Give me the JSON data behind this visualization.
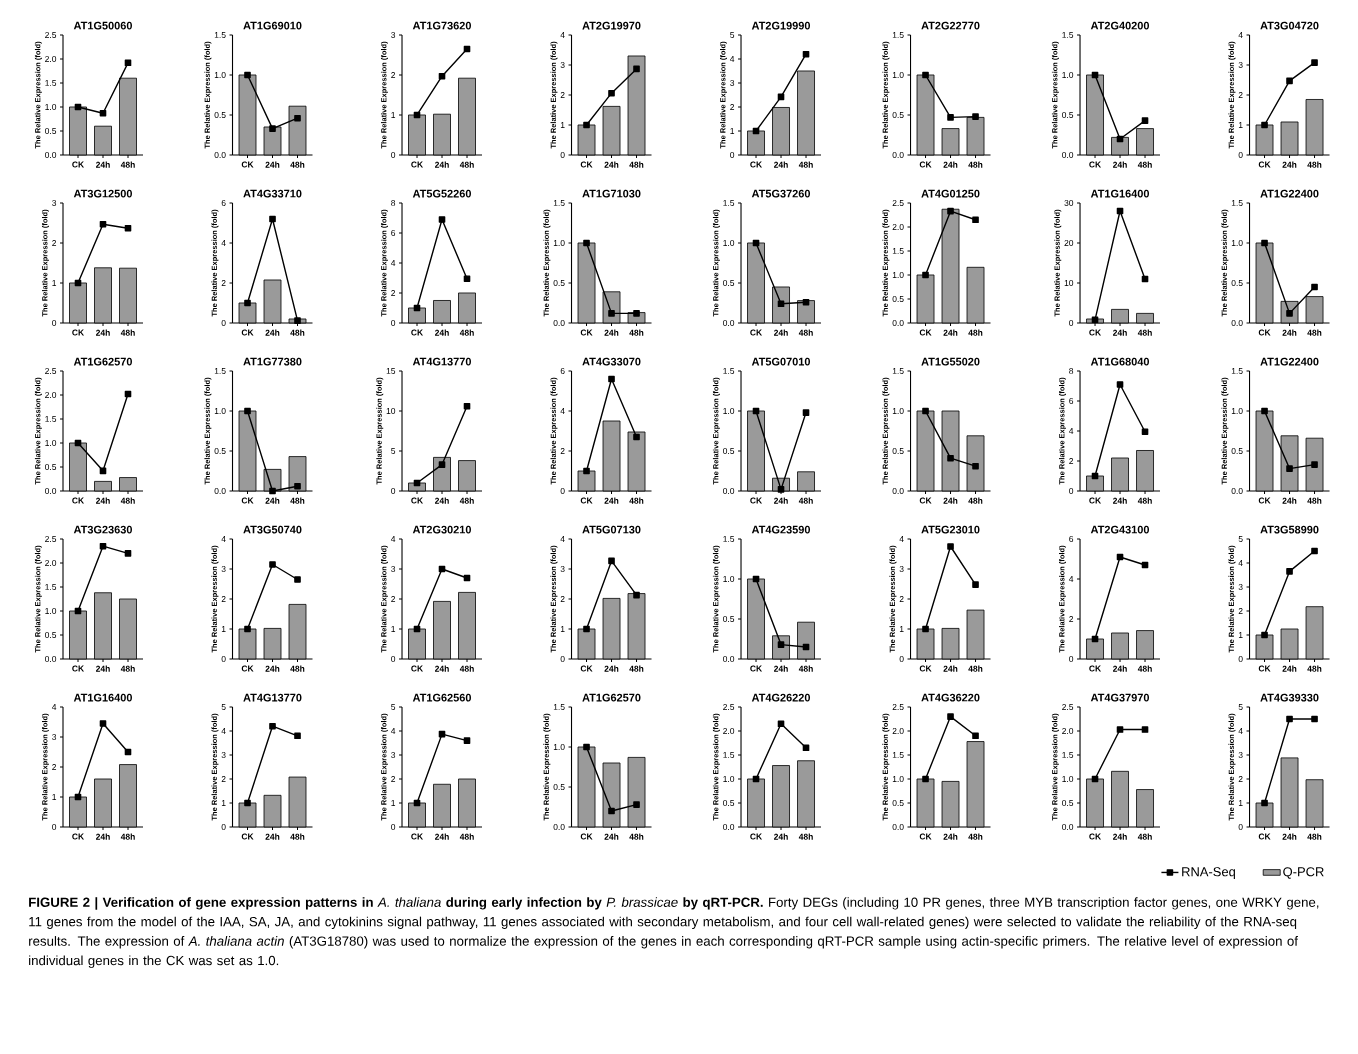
{
  "chart_data": [
    {
      "type": "bar",
      "title": "AT1G50060",
      "ylabel": "The Relative Expression (fold)",
      "categories": [
        "CK",
        "24h",
        "48h"
      ],
      "ylim": [
        0,
        2.5
      ],
      "yticks": [
        {
          "value": 0,
          "label": "0.0"
        },
        {
          "value": 0.5,
          "label": "0.5"
        },
        {
          "value": 1,
          "label": "1.0"
        },
        {
          "value": 1.5,
          "label": "1.5"
        },
        {
          "value": 2,
          "label": "2.0"
        },
        {
          "value": 2.5,
          "label": "2.5"
        }
      ],
      "series": [
        {
          "type": "bar",
          "color": "#9a9a9a",
          "values": [
            1.0,
            0.6,
            1.6
          ]
        },
        {
          "type": "line",
          "color": "#000000",
          "marker": "square",
          "values": [
            1.0,
            0.87,
            1.92
          ]
        }
      ]
    },
    {
      "type": "bar",
      "title": "AT1G69010",
      "ylabel": "The Relative Expression (fold)",
      "categories": [
        "CK",
        "24h",
        "48h"
      ],
      "ylim": [
        0,
        1.5
      ],
      "yticks": [
        {
          "value": 0,
          "label": "0.0"
        },
        {
          "value": 0.5,
          "label": "0.5"
        },
        {
          "value": 1,
          "label": "1.0"
        },
        {
          "value": 1.5,
          "label": "1.5"
        }
      ],
      "series": [
        {
          "type": "bar",
          "color": "#9a9a9a",
          "values": [
            1.0,
            0.35,
            0.61
          ]
        },
        {
          "type": "line",
          "color": "#000000",
          "marker": "square",
          "values": [
            1.0,
            0.33,
            0.46
          ]
        }
      ]
    },
    {
      "type": "bar",
      "title": "AT1G73620",
      "ylabel": "The Relative Expression (fold)",
      "categories": [
        "CK",
        "24h",
        "48h"
      ],
      "ylim": [
        0,
        3
      ],
      "yticks": [
        0,
        1,
        2,
        3
      ],
      "series": [
        {
          "type": "bar",
          "color": "#9a9a9a",
          "values": [
            1.0,
            1.02,
            1.92
          ]
        },
        {
          "type": "line",
          "color": "#000000",
          "marker": "square",
          "values": [
            1.0,
            1.97,
            2.65
          ]
        }
      ]
    },
    {
      "type": "bar",
      "title": "AT2G19970",
      "ylabel": "The Relative Expression (fold)",
      "categories": [
        "CK",
        "24h",
        "48h"
      ],
      "ylim": [
        0,
        4
      ],
      "yticks": [
        0,
        1,
        2,
        3,
        4
      ],
      "series": [
        {
          "type": "bar",
          "color": "#9a9a9a",
          "values": [
            1.0,
            1.62,
            3.3
          ]
        },
        {
          "type": "line",
          "color": "#000000",
          "marker": "square",
          "values": [
            1.0,
            2.06,
            2.87
          ]
        }
      ]
    },
    {
      "type": "bar",
      "title": "AT2G19990",
      "ylabel": "The Relative Expression (fold)",
      "categories": [
        "CK",
        "24h",
        "48h"
      ],
      "ylim": [
        0,
        5
      ],
      "yticks": [
        0,
        1,
        2,
        3,
        4,
        5
      ],
      "series": [
        {
          "type": "bar",
          "color": "#9a9a9a",
          "values": [
            1.0,
            1.98,
            3.5
          ]
        },
        {
          "type": "line",
          "color": "#000000",
          "marker": "square",
          "values": [
            1.0,
            2.42,
            4.2
          ]
        }
      ]
    },
    {
      "type": "bar",
      "title": "AT2G22770",
      "ylabel": "The Relative Expression (fold)",
      "categories": [
        "CK",
        "24h",
        "48h"
      ],
      "ylim": [
        0,
        1.5
      ],
      "yticks": [
        {
          "value": 0,
          "label": "0.0"
        },
        {
          "value": 0.5,
          "label": "0.5"
        },
        {
          "value": 1,
          "label": "1.0"
        },
        {
          "value": 1.5,
          "label": "1.5"
        }
      ],
      "series": [
        {
          "type": "bar",
          "color": "#9a9a9a",
          "values": [
            1.0,
            0.33,
            0.47
          ]
        },
        {
          "type": "line",
          "color": "#000000",
          "marker": "square",
          "values": [
            1.0,
            0.47,
            0.48
          ]
        }
      ]
    },
    {
      "type": "bar",
      "title": "AT2G40200",
      "ylabel": "The Relative Expression (fold)",
      "categories": [
        "CK",
        "24h",
        "48h"
      ],
      "ylim": [
        0,
        1.5
      ],
      "yticks": [
        {
          "value": 0,
          "label": "0.0"
        },
        {
          "value": 0.5,
          "label": "0.5"
        },
        {
          "value": 1,
          "label": "1.0"
        },
        {
          "value": 1.5,
          "label": "1.5"
        }
      ],
      "series": [
        {
          "type": "bar",
          "color": "#9a9a9a",
          "values": [
            1.0,
            0.22,
            0.33
          ]
        },
        {
          "type": "line",
          "color": "#000000",
          "marker": "square",
          "values": [
            1.0,
            0.2,
            0.43
          ]
        }
      ]
    },
    {
      "type": "bar",
      "title": "AT3G04720",
      "ylabel": "The Relative Expression (fold)",
      "categories": [
        "CK",
        "24h",
        "48h"
      ],
      "ylim": [
        0,
        4
      ],
      "yticks": [
        0,
        1,
        2,
        3,
        4
      ],
      "series": [
        {
          "type": "bar",
          "color": "#9a9a9a",
          "values": [
            1.0,
            1.1,
            1.85
          ]
        },
        {
          "type": "line",
          "color": "#000000",
          "marker": "square",
          "values": [
            1.0,
            2.47,
            3.08
          ]
        }
      ]
    },
    {
      "type": "bar",
      "title": "AT3G12500",
      "ylabel": "The Relative Expression (fold)",
      "categories": [
        "CK",
        "24h",
        "48h"
      ],
      "ylim": [
        0,
        3
      ],
      "yticks": [
        0,
        1,
        2,
        3
      ],
      "series": [
        {
          "type": "bar",
          "color": "#9a9a9a",
          "values": [
            1.0,
            1.38,
            1.37
          ]
        },
        {
          "type": "line",
          "color": "#000000",
          "marker": "square",
          "values": [
            1.0,
            2.47,
            2.37
          ]
        }
      ]
    },
    {
      "type": "bar",
      "title": "AT4G33710",
      "ylabel": "The Relative Expression (fold)",
      "categories": [
        "CK",
        "24h",
        "48h"
      ],
      "ylim": [
        0,
        6
      ],
      "yticks": [
        0,
        2,
        4,
        6
      ],
      "series": [
        {
          "type": "bar",
          "color": "#9a9a9a",
          "values": [
            1.0,
            2.15,
            0.2
          ]
        },
        {
          "type": "line",
          "color": "#000000",
          "marker": "square",
          "values": [
            1.0,
            5.2,
            0.12
          ]
        }
      ]
    },
    {
      "type": "bar",
      "title": "AT5G52260",
      "ylabel": "The Relative Expression (fold)",
      "categories": [
        "CK",
        "24h",
        "48h"
      ],
      "ylim": [
        0,
        8
      ],
      "yticks": [
        0,
        2,
        4,
        6,
        8
      ],
      "series": [
        {
          "type": "bar",
          "color": "#9a9a9a",
          "values": [
            1.0,
            1.5,
            2.0
          ]
        },
        {
          "type": "line",
          "color": "#000000",
          "marker": "square",
          "values": [
            1.0,
            6.9,
            2.95
          ]
        }
      ]
    },
    {
      "type": "bar",
      "title": "AT1G71030",
      "ylabel": "The Relative Expression (fold)",
      "categories": [
        "CK",
        "24h",
        "48h"
      ],
      "ylim": [
        0,
        1.5
      ],
      "yticks": [
        {
          "value": 0,
          "label": "0.0"
        },
        {
          "value": 0.5,
          "label": "0.5"
        },
        {
          "value": 1,
          "label": "1.0"
        },
        {
          "value": 1.5,
          "label": "1.5"
        }
      ],
      "series": [
        {
          "type": "bar",
          "color": "#9a9a9a",
          "values": [
            1.0,
            0.39,
            0.13
          ]
        },
        {
          "type": "line",
          "color": "#000000",
          "marker": "square",
          "values": [
            1.0,
            0.12,
            0.12
          ]
        }
      ]
    },
    {
      "type": "bar",
      "title": "AT5G37260",
      "ylabel": "The Relative Expression (fold)",
      "categories": [
        "CK",
        "24h",
        "48h"
      ],
      "ylim": [
        0,
        1.5
      ],
      "yticks": [
        {
          "value": 0,
          "label": "0.0"
        },
        {
          "value": 0.5,
          "label": "0.5"
        },
        {
          "value": 1,
          "label": "1.0"
        },
        {
          "value": 1.5,
          "label": "1.5"
        }
      ],
      "series": [
        {
          "type": "bar",
          "color": "#9a9a9a",
          "values": [
            1.0,
            0.45,
            0.28
          ]
        },
        {
          "type": "line",
          "color": "#000000",
          "marker": "square",
          "values": [
            1.0,
            0.24,
            0.26
          ]
        }
      ]
    },
    {
      "type": "bar",
      "title": "AT4G01250",
      "ylabel": "The Relative Expression (fold)",
      "categories": [
        "CK",
        "24h",
        "48h"
      ],
      "ylim": [
        0,
        2.5
      ],
      "yticks": [
        {
          "value": 0,
          "label": "0.0"
        },
        {
          "value": 0.5,
          "label": "0.5"
        },
        {
          "value": 1,
          "label": "1.0"
        },
        {
          "value": 1.5,
          "label": "1.5"
        },
        {
          "value": 2,
          "label": "2.0"
        },
        {
          "value": 2.5,
          "label": "2.5"
        }
      ],
      "series": [
        {
          "type": "bar",
          "color": "#9a9a9a",
          "values": [
            1.0,
            2.37,
            1.16
          ]
        },
        {
          "type": "line",
          "color": "#000000",
          "marker": "square",
          "values": [
            1.0,
            2.33,
            2.15
          ]
        }
      ]
    },
    {
      "type": "bar",
      "title": "AT1G16400",
      "ylabel": "The Relative Expression (fold)",
      "categories": [
        "CK",
        "24h",
        "48h"
      ],
      "ylim": [
        0,
        30
      ],
      "yticks": [
        0,
        10,
        20,
        30
      ],
      "series": [
        {
          "type": "bar",
          "color": "#9a9a9a",
          "values": [
            1.0,
            3.4,
            2.4
          ]
        },
        {
          "type": "line",
          "color": "#000000",
          "marker": "square",
          "values": [
            0.8,
            28,
            11
          ]
        }
      ]
    },
    {
      "type": "bar",
      "title": "AT1G22400",
      "ylabel": "The Relative Expression (fold)",
      "categories": [
        "CK",
        "24h",
        "48h"
      ],
      "ylim": [
        0,
        1.5
      ],
      "yticks": [
        {
          "value": 0,
          "label": "0.0"
        },
        {
          "value": 0.5,
          "label": "0.5"
        },
        {
          "value": 1,
          "label": "1.0"
        },
        {
          "value": 1.5,
          "label": "1.5"
        }
      ],
      "series": [
        {
          "type": "bar",
          "color": "#9a9a9a",
          "values": [
            1.0,
            0.27,
            0.33
          ]
        },
        {
          "type": "line",
          "color": "#000000",
          "marker": "square",
          "values": [
            1.0,
            0.12,
            0.45
          ]
        }
      ]
    },
    {
      "type": "bar",
      "title": "AT1G62570",
      "ylabel": "The Relative Expression (fold)",
      "categories": [
        "CK",
        "24h",
        "48h"
      ],
      "ylim": [
        0,
        2.5
      ],
      "yticks": [
        {
          "value": 0,
          "label": "0.0"
        },
        {
          "value": 0.5,
          "label": "0.5"
        },
        {
          "value": 1,
          "label": "1.0"
        },
        {
          "value": 1.5,
          "label": "1.5"
        },
        {
          "value": 2,
          "label": "2.0"
        },
        {
          "value": 2.5,
          "label": "2.5"
        }
      ],
      "series": [
        {
          "type": "bar",
          "color": "#9a9a9a",
          "values": [
            1.0,
            0.2,
            0.28
          ]
        },
        {
          "type": "line",
          "color": "#000000",
          "marker": "square",
          "values": [
            1.0,
            0.42,
            2.02
          ]
        }
      ]
    },
    {
      "type": "bar",
      "title": "AT1G77380",
      "ylabel": "The Relative Expression (fold)",
      "categories": [
        "CK",
        "24h",
        "48h"
      ],
      "ylim": [
        0,
        1.5
      ],
      "yticks": [
        {
          "value": 0,
          "label": "0.0"
        },
        {
          "value": 0.5,
          "label": "0.5"
        },
        {
          "value": 1,
          "label": "1.0"
        },
        {
          "value": 1.5,
          "label": "1.5"
        }
      ],
      "series": [
        {
          "type": "bar",
          "color": "#9a9a9a",
          "values": [
            1.0,
            0.27,
            0.43
          ]
        },
        {
          "type": "line",
          "color": "#000000",
          "marker": "square",
          "values": [
            1.0,
            0.0,
            0.06
          ]
        }
      ]
    },
    {
      "type": "bar",
      "title": "AT4G13770",
      "ylabel": "The Relative Expression (fold)",
      "categories": [
        "CK",
        "24h",
        "48h"
      ],
      "ylim": [
        0,
        15
      ],
      "yticks": [
        0,
        5,
        10,
        15
      ],
      "series": [
        {
          "type": "bar",
          "color": "#9a9a9a",
          "values": [
            1.0,
            4.2,
            3.8
          ]
        },
        {
          "type": "line",
          "color": "#000000",
          "marker": "square",
          "values": [
            1.0,
            3.3,
            10.6
          ]
        }
      ]
    },
    {
      "type": "bar",
      "title": "AT4G33070",
      "ylabel": "The Relative Expression (fold)",
      "categories": [
        "CK",
        "24h",
        "48h"
      ],
      "ylim": [
        0,
        6
      ],
      "yticks": [
        0,
        2,
        4,
        6
      ],
      "series": [
        {
          "type": "bar",
          "color": "#9a9a9a",
          "values": [
            1.0,
            3.5,
            2.95
          ]
        },
        {
          "type": "line",
          "color": "#000000",
          "marker": "square",
          "values": [
            1.0,
            5.6,
            2.7
          ]
        }
      ]
    },
    {
      "type": "bar",
      "title": "AT5G07010",
      "ylabel": "The Relative Expression (fold)",
      "categories": [
        "CK",
        "24h",
        "48h"
      ],
      "ylim": [
        0,
        1.5
      ],
      "yticks": [
        {
          "value": 0,
          "label": "0.0"
        },
        {
          "value": 0.5,
          "label": "0.5"
        },
        {
          "value": 1,
          "label": "1.0"
        },
        {
          "value": 1.5,
          "label": "1.5"
        }
      ],
      "series": [
        {
          "type": "bar",
          "color": "#9a9a9a",
          "values": [
            1.0,
            0.16,
            0.24
          ]
        },
        {
          "type": "line",
          "color": "#000000",
          "marker": "square",
          "values": [
            1.0,
            0.02,
            0.98
          ]
        }
      ]
    },
    {
      "type": "bar",
      "title": "AT1G55020",
      "ylabel": "The Relative Expression (fold)",
      "categories": [
        "CK",
        "24h",
        "48h"
      ],
      "ylim": [
        0,
        1.5
      ],
      "yticks": [
        {
          "value": 0,
          "label": "0.0"
        },
        {
          "value": 0.5,
          "label": "0.5"
        },
        {
          "value": 1,
          "label": "1.0"
        },
        {
          "value": 1.5,
          "label": "1.5"
        }
      ],
      "series": [
        {
          "type": "bar",
          "color": "#9a9a9a",
          "values": [
            1.0,
            1.0,
            0.69
          ]
        },
        {
          "type": "line",
          "color": "#000000",
          "marker": "square",
          "values": [
            1.0,
            0.41,
            0.31
          ]
        }
      ]
    },
    {
      "type": "bar",
      "title": "AT1G68040",
      "ylabel": "The Relative Expression (fold)",
      "categories": [
        "CK",
        "24h",
        "48h"
      ],
      "ylim": [
        0,
        8
      ],
      "yticks": [
        0,
        2,
        4,
        6,
        8
      ],
      "series": [
        {
          "type": "bar",
          "color": "#9a9a9a",
          "values": [
            1.0,
            2.2,
            2.7
          ]
        },
        {
          "type": "line",
          "color": "#000000",
          "marker": "square",
          "values": [
            1.0,
            7.1,
            3.95
          ]
        }
      ]
    },
    {
      "type": "bar",
      "title": "AT1G22400",
      "ylabel": "The Relative Expression (fold)",
      "categories": [
        "CK",
        "24h",
        "48h"
      ],
      "ylim": [
        0,
        1.5
      ],
      "yticks": [
        {
          "value": 0,
          "label": "0.0"
        },
        {
          "value": 0.5,
          "label": "0.5"
        },
        {
          "value": 1,
          "label": "1.0"
        },
        {
          "value": 1.5,
          "label": "1.5"
        }
      ],
      "series": [
        {
          "type": "bar",
          "color": "#9a9a9a",
          "values": [
            1.0,
            0.69,
            0.66
          ]
        },
        {
          "type": "line",
          "color": "#000000",
          "marker": "square",
          "values": [
            1.0,
            0.28,
            0.33
          ]
        }
      ]
    },
    {
      "type": "bar",
      "title": "AT3G23630",
      "ylabel": "The Relative Expression (fold)",
      "categories": [
        "CK",
        "24h",
        "48h"
      ],
      "ylim": [
        0,
        2.5
      ],
      "yticks": [
        {
          "value": 0,
          "label": "0.0"
        },
        {
          "value": 0.5,
          "label": "0.5"
        },
        {
          "value": 1,
          "label": "1.0"
        },
        {
          "value": 1.5,
          "label": "1.5"
        },
        {
          "value": 2,
          "label": "2.0"
        },
        {
          "value": 2.5,
          "label": "2.5"
        }
      ],
      "series": [
        {
          "type": "bar",
          "color": "#9a9a9a",
          "values": [
            1.0,
            1.38,
            1.25
          ]
        },
        {
          "type": "line",
          "color": "#000000",
          "marker": "square",
          "values": [
            1.0,
            2.35,
            2.2
          ]
        }
      ]
    },
    {
      "type": "bar",
      "title": "AT3G50740",
      "ylabel": "The Relative Expression (fold)",
      "categories": [
        "CK",
        "24h",
        "48h"
      ],
      "ylim": [
        0,
        4
      ],
      "yticks": [
        0,
        1,
        2,
        3,
        4
      ],
      "series": [
        {
          "type": "bar",
          "color": "#9a9a9a",
          "values": [
            1.0,
            1.02,
            1.82
          ]
        },
        {
          "type": "line",
          "color": "#000000",
          "marker": "square",
          "values": [
            1.0,
            3.15,
            2.65
          ]
        }
      ]
    },
    {
      "type": "bar",
      "title": "AT2G30210",
      "ylabel": "The Relative Expression (fold)",
      "categories": [
        "CK",
        "24h",
        "48h"
      ],
      "ylim": [
        0,
        4
      ],
      "yticks": [
        0,
        1,
        2,
        3,
        4
      ],
      "series": [
        {
          "type": "bar",
          "color": "#9a9a9a",
          "values": [
            1.0,
            1.92,
            2.22
          ]
        },
        {
          "type": "line",
          "color": "#000000",
          "marker": "square",
          "values": [
            1.0,
            3.0,
            2.7
          ]
        }
      ]
    },
    {
      "type": "bar",
      "title": "AT5G07130",
      "ylabel": "The Relative Expression (fold)",
      "categories": [
        "CK",
        "24h",
        "48h"
      ],
      "ylim": [
        0,
        4
      ],
      "yticks": [
        0,
        1,
        2,
        3,
        4
      ],
      "series": [
        {
          "type": "bar",
          "color": "#9a9a9a",
          "values": [
            1.0,
            2.02,
            2.18
          ]
        },
        {
          "type": "line",
          "color": "#000000",
          "marker": "square",
          "values": [
            1.0,
            3.27,
            2.13
          ]
        }
      ]
    },
    {
      "type": "bar",
      "title": "AT4G23590",
      "ylabel": "The Relative Expression (fold)",
      "categories": [
        "CK",
        "24h",
        "48h"
      ],
      "ylim": [
        0,
        1.5
      ],
      "yticks": [
        {
          "value": 0,
          "label": "0.0"
        },
        {
          "value": 0.5,
          "label": "0.5"
        },
        {
          "value": 1,
          "label": "1.0"
        },
        {
          "value": 1.5,
          "label": "1.5"
        }
      ],
      "series": [
        {
          "type": "bar",
          "color": "#9a9a9a",
          "values": [
            1.0,
            0.29,
            0.46
          ]
        },
        {
          "type": "line",
          "color": "#000000",
          "marker": "square",
          "values": [
            1.0,
            0.18,
            0.15
          ]
        }
      ]
    },
    {
      "type": "bar",
      "title": "AT5G23010",
      "ylabel": "The Relative Expression (fold)",
      "categories": [
        "CK",
        "24h",
        "48h"
      ],
      "ylim": [
        0,
        4
      ],
      "yticks": [
        0,
        1,
        2,
        3,
        4
      ],
      "series": [
        {
          "type": "bar",
          "color": "#9a9a9a",
          "values": [
            1.0,
            1.02,
            1.63
          ]
        },
        {
          "type": "line",
          "color": "#000000",
          "marker": "square",
          "values": [
            1.0,
            3.75,
            2.48
          ]
        }
      ]
    },
    {
      "type": "bar",
      "title": "AT2G43100",
      "ylabel": "The Relative Expression (fold)",
      "categories": [
        "CK",
        "24h",
        "48h"
      ],
      "ylim": [
        0,
        6
      ],
      "yticks": [
        0,
        2,
        4,
        6
      ],
      "series": [
        {
          "type": "bar",
          "color": "#9a9a9a",
          "values": [
            1.0,
            1.3,
            1.42
          ]
        },
        {
          "type": "line",
          "color": "#000000",
          "marker": "square",
          "values": [
            1.0,
            5.1,
            4.7
          ]
        }
      ]
    },
    {
      "type": "bar",
      "title": "AT3G58990",
      "ylabel": "The Relative Expression (fold)",
      "categories": [
        "CK",
        "24h",
        "48h"
      ],
      "ylim": [
        0,
        5
      ],
      "yticks": [
        0,
        1,
        2,
        3,
        4,
        5
      ],
      "series": [
        {
          "type": "bar",
          "color": "#9a9a9a",
          "values": [
            1.0,
            1.25,
            2.18
          ]
        },
        {
          "type": "line",
          "color": "#000000",
          "marker": "square",
          "values": [
            1.0,
            3.65,
            4.5
          ]
        }
      ]
    },
    {
      "type": "bar",
      "title": "AT1G16400",
      "ylabel": "The Relative Expression (fold)",
      "categories": [
        "CK",
        "24h",
        "48h"
      ],
      "ylim": [
        0,
        4
      ],
      "yticks": [
        0,
        1,
        2,
        3,
        4
      ],
      "series": [
        {
          "type": "bar",
          "color": "#9a9a9a",
          "values": [
            1.0,
            1.6,
            2.08
          ]
        },
        {
          "type": "line",
          "color": "#000000",
          "marker": "square",
          "values": [
            1.0,
            3.45,
            2.5
          ]
        }
      ]
    },
    {
      "type": "bar",
      "title": "AT4G13770",
      "ylabel": "The Relative Expression (fold)",
      "categories": [
        "CK",
        "24h",
        "48h"
      ],
      "ylim": [
        0,
        5
      ],
      "yticks": [
        0,
        1,
        2,
        3,
        4,
        5
      ],
      "series": [
        {
          "type": "bar",
          "color": "#9a9a9a",
          "values": [
            1.0,
            1.32,
            2.08
          ]
        },
        {
          "type": "line",
          "color": "#000000",
          "marker": "square",
          "values": [
            1.0,
            4.2,
            3.8
          ]
        }
      ]
    },
    {
      "type": "bar",
      "title": "AT1G62560",
      "ylabel": "The Relative Expression (fold)",
      "categories": [
        "CK",
        "24h",
        "48h"
      ],
      "ylim": [
        0,
        5
      ],
      "yticks": [
        0,
        1,
        2,
        3,
        4,
        5
      ],
      "series": [
        {
          "type": "bar",
          "color": "#9a9a9a",
          "values": [
            1.0,
            1.78,
            2.0
          ]
        },
        {
          "type": "line",
          "color": "#000000",
          "marker": "square",
          "values": [
            1.0,
            3.87,
            3.6
          ]
        }
      ]
    },
    {
      "type": "bar",
      "title": "AT1G62570",
      "ylabel": "The Relative Expression (fold)",
      "categories": [
        "CK",
        "24h",
        "48h"
      ],
      "ylim": [
        0,
        1.5
      ],
      "yticks": [
        {
          "value": 0,
          "label": "0.0"
        },
        {
          "value": 0.5,
          "label": "0.5"
        },
        {
          "value": 1,
          "label": "1.0"
        },
        {
          "value": 1.5,
          "label": "1.5"
        }
      ],
      "series": [
        {
          "type": "bar",
          "color": "#9a9a9a",
          "values": [
            1.0,
            0.8,
            0.87
          ]
        },
        {
          "type": "line",
          "color": "#000000",
          "marker": "square",
          "values": [
            1.0,
            0.2,
            0.28
          ]
        }
      ]
    },
    {
      "type": "bar",
      "title": "AT4G26220",
      "ylabel": "The Relative Expression (fold)",
      "categories": [
        "CK",
        "24h",
        "48h"
      ],
      "ylim": [
        0,
        2.5
      ],
      "yticks": [
        {
          "value": 0,
          "label": "0.0"
        },
        {
          "value": 0.5,
          "label": "0.5"
        },
        {
          "value": 1,
          "label": "1.0"
        },
        {
          "value": 1.5,
          "label": "1.5"
        },
        {
          "value": 2,
          "label": "2.0"
        },
        {
          "value": 2.5,
          "label": "2.5"
        }
      ],
      "series": [
        {
          "type": "bar",
          "color": "#9a9a9a",
          "values": [
            1.0,
            1.28,
            1.38
          ]
        },
        {
          "type": "line",
          "color": "#000000",
          "marker": "square",
          "values": [
            1.0,
            2.15,
            1.65
          ]
        }
      ]
    },
    {
      "type": "bar",
      "title": "AT4G36220",
      "ylabel": "The Relative Expression (fold)",
      "categories": [
        "CK",
        "24h",
        "48h"
      ],
      "ylim": [
        0,
        2.5
      ],
      "yticks": [
        {
          "value": 0,
          "label": "0.0"
        },
        {
          "value": 0.5,
          "label": "0.5"
        },
        {
          "value": 1,
          "label": "1.0"
        },
        {
          "value": 1.5,
          "label": "1.5"
        },
        {
          "value": 2,
          "label": "2.0"
        },
        {
          "value": 2.5,
          "label": "2.5"
        }
      ],
      "series": [
        {
          "type": "bar",
          "color": "#9a9a9a",
          "values": [
            1.0,
            0.95,
            1.78
          ]
        },
        {
          "type": "line",
          "color": "#000000",
          "marker": "square",
          "values": [
            1.0,
            2.3,
            1.9
          ]
        }
      ]
    },
    {
      "type": "bar",
      "title": "AT4G37970",
      "ylabel": "The Relative Expression (fold)",
      "categories": [
        "CK",
        "24h",
        "48h"
      ],
      "ylim": [
        0,
        2.5
      ],
      "yticks": [
        {
          "value": 0,
          "label": "0.0"
        },
        {
          "value": 0.5,
          "label": "0.5"
        },
        {
          "value": 1,
          "label": "1.0"
        },
        {
          "value": 1.5,
          "label": "1.5"
        },
        {
          "value": 2,
          "label": "2.0"
        },
        {
          "value": 2.5,
          "label": "2.5"
        }
      ],
      "series": [
        {
          "type": "bar",
          "color": "#9a9a9a",
          "values": [
            1.0,
            1.16,
            0.78
          ]
        },
        {
          "type": "line",
          "color": "#000000",
          "marker": "square",
          "values": [
            1.0,
            2.03,
            2.03
          ]
        }
      ]
    },
    {
      "type": "bar",
      "title": "AT4G39330",
      "ylabel": "The Relative Expression (fold)",
      "categories": [
        "CK",
        "24h",
        "48h"
      ],
      "ylim": [
        0,
        5
      ],
      "yticks": [
        0,
        1,
        2,
        3,
        4,
        5
      ],
      "legend": "bottom",
      "series": [
        {
          "type": "bar",
          "name": "Q-PCR",
          "color": "#9a9a9a",
          "values": [
            1.0,
            2.88,
            1.97
          ]
        },
        {
          "type": "line",
          "name": "RNA-Seq",
          "color": "#000000",
          "marker": "square",
          "values": [
            1.0,
            4.5,
            4.5
          ]
        }
      ],
      "annotations": [
        "**FIGURE 2 | Verification of gene expression patterns in** *A. thaliana* **during early infection by** *P. brassicae* **by qRT-PCR.** Forty DEGs (including 10 PR genes, three MYB transcription factor genes, one WRKY gene, 11 genes from the model of the IAA, SA, JA, and cytokinins signal pathway, 11 genes associated with secondary metabolism, and four cell wall-related genes) were selected to validate the reliability of the RNA-seq results. The expression of *A. thaliana actin* (AT3G18780) was used to normalize the expression of the genes in each corresponding qRT-PCR sample using actin-specific primers. The relative level of expression of individual genes in the CK was set as 1.0."
      ]
    }
  ]
}
